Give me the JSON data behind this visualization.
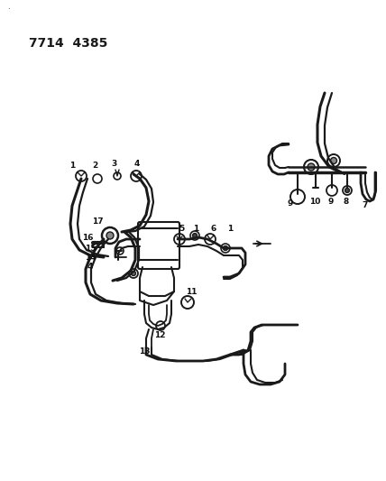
{
  "title": "7714  4385",
  "bg_color": "#ffffff",
  "line_color": "#1a1a1a",
  "label_color": "#111111",
  "fig_width": 4.28,
  "fig_height": 5.33,
  "dpi": 100
}
